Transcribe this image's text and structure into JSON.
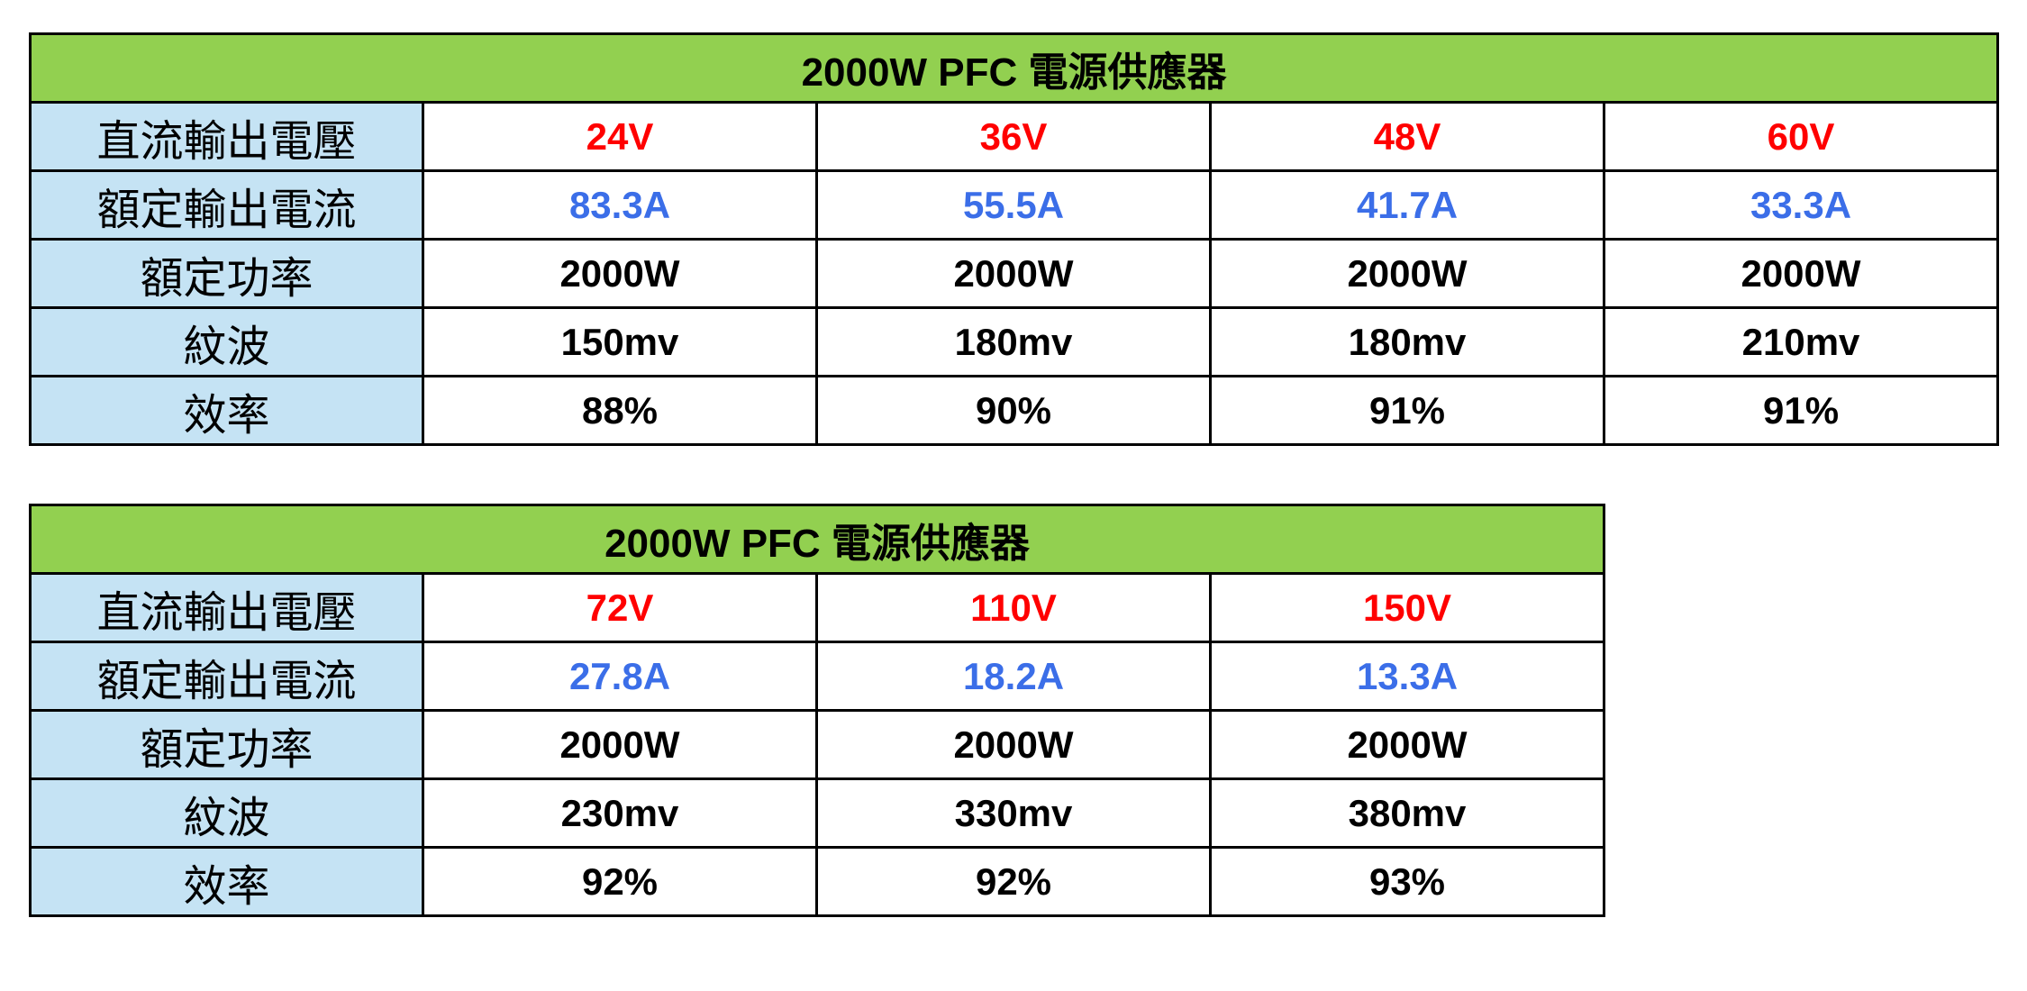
{
  "tables": [
    {
      "title": "2000W PFC 電源供應器",
      "rows": [
        {
          "label": "直流輸出電壓",
          "cells": [
            "24V",
            "36V",
            "48V",
            "60V"
          ]
        },
        {
          "label": "額定輸出電流",
          "cells": [
            "83.3A",
            "55.5A",
            "41.7A",
            "33.3A"
          ]
        },
        {
          "label": "額定功率",
          "cells": [
            "2000W",
            "2000W",
            "2000W",
            "2000W"
          ]
        },
        {
          "label": "紋波",
          "cells": [
            "150mv",
            "180mv",
            "180mv",
            "210mv"
          ]
        },
        {
          "label": "效率",
          "cells": [
            "88%",
            "90%",
            "91%",
            "91%"
          ]
        }
      ]
    },
    {
      "title": "2000W PFC 電源供應器",
      "rows": [
        {
          "label": "直流輸出電壓",
          "cells": [
            "72V",
            "110V",
            "150V"
          ]
        },
        {
          "label": "額定輸出電流",
          "cells": [
            "27.8A",
            "18.2A",
            "13.3A"
          ]
        },
        {
          "label": "額定功率",
          "cells": [
            "2000W",
            "2000W",
            "2000W"
          ]
        },
        {
          "label": "紋波",
          "cells": [
            "230mv",
            "330mv",
            "380mv"
          ]
        },
        {
          "label": "效率",
          "cells": [
            "92%",
            "92%",
            "93%"
          ]
        }
      ]
    }
  ]
}
